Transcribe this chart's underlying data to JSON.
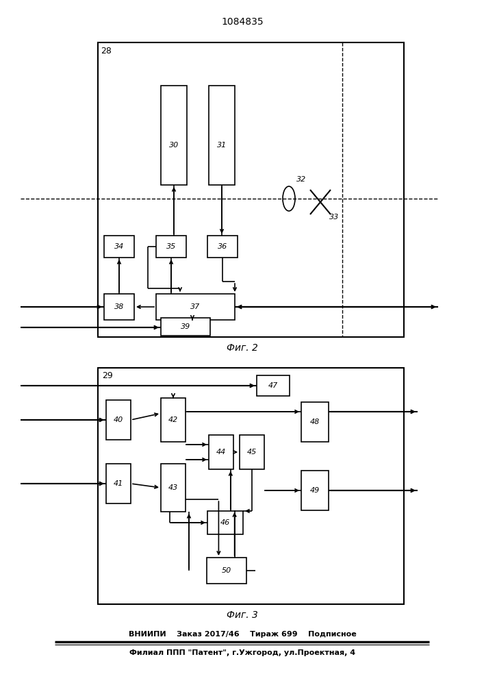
{
  "title": "1084835",
  "fig2_caption": "Фиг. 2",
  "fig3_caption": "Фиг. 3",
  "footer_line1": "ВНИИПИ    Заказ 2017/46    Тираж 699    Подписное",
  "footer_line2": "Филиал ППП \"Патент\", г.Ужгород, ул.Проектная, 4",
  "bg_color": "#ffffff"
}
